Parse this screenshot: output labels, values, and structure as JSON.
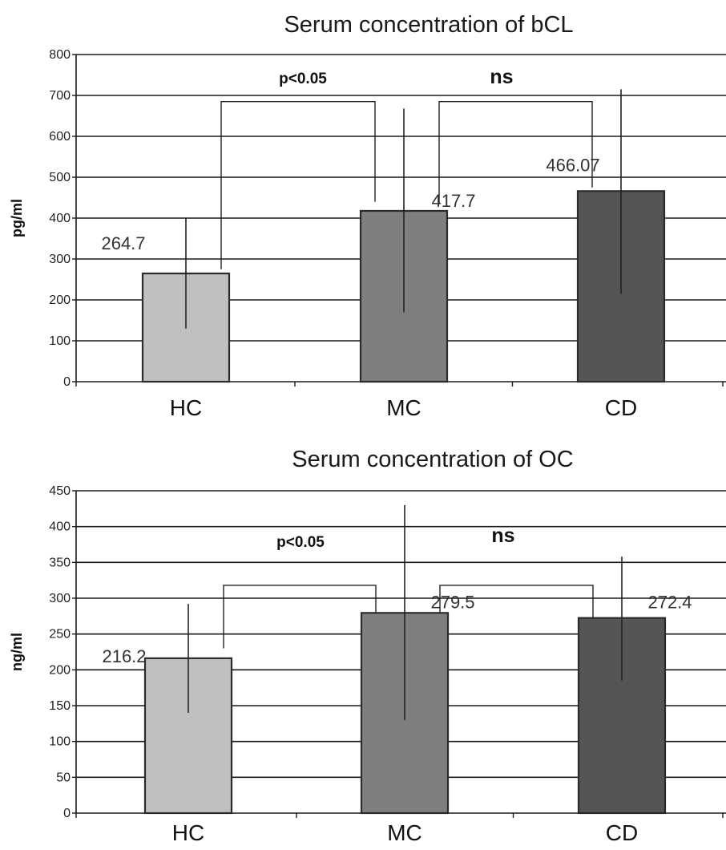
{
  "chart_data": [
    {
      "type": "bar",
      "title": "Serum concentration of bCL",
      "ylabel": "pg/ml",
      "xlabel": "",
      "ylim": [
        0,
        800
      ],
      "yticks": [
        0,
        100,
        200,
        300,
        400,
        500,
        600,
        700,
        800
      ],
      "grid": true,
      "categories": [
        "HC",
        "MC",
        "CD"
      ],
      "values": [
        264.7,
        417.7,
        466.07
      ],
      "value_labels": [
        "264.7",
        "417.7",
        "466.07"
      ],
      "error_low": [
        130,
        170,
        215
      ],
      "error_high": [
        400,
        668,
        715
      ],
      "colors": [
        "#c0c0c0",
        "#7f7f7f",
        "#555555"
      ],
      "comparisons": [
        {
          "from": 0,
          "to": 1,
          "label": "p<0.05",
          "bracket_y": 685,
          "left_drop_y": 275,
          "right_drop_y": 440
        },
        {
          "from": 1,
          "to": 2,
          "label": "ns",
          "bracket_y": 685,
          "left_drop_y": 435,
          "right_drop_y": 475
        }
      ]
    },
    {
      "type": "bar",
      "title": "Serum concentration of OC",
      "ylabel": "ng/ml",
      "xlabel": "",
      "ylim": [
        0,
        450
      ],
      "yticks": [
        0,
        50,
        100,
        150,
        200,
        250,
        300,
        350,
        400,
        450
      ],
      "grid": true,
      "categories": [
        "HC",
        "MC",
        "CD"
      ],
      "values": [
        216.2,
        279.5,
        272.4
      ],
      "value_labels": [
        "216.2",
        "279.5",
        "272.4"
      ],
      "error_low": [
        140,
        130,
        185
      ],
      "error_high": [
        292,
        430,
        358
      ],
      "colors": [
        "#c0c0c0",
        "#7f7f7f",
        "#555555"
      ],
      "comparisons": [
        {
          "from": 0,
          "to": 1,
          "label": "p<0.05",
          "bracket_y": 318,
          "left_drop_y": 230,
          "right_drop_y": 280
        },
        {
          "from": 1,
          "to": 2,
          "label": "ns",
          "bracket_y": 318,
          "left_drop_y": 280,
          "right_drop_y": 272
        }
      ]
    }
  ]
}
